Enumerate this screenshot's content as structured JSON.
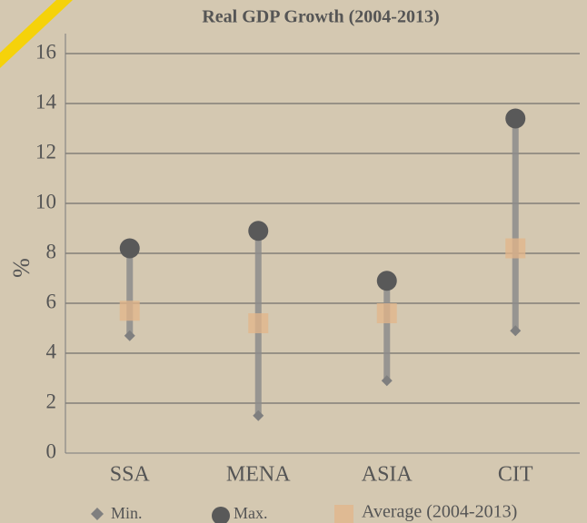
{
  "chart_data": {
    "type": "range",
    "title": "Real GDP Growth (2004-2013)",
    "y_label": "%",
    "categories": [
      "SSA",
      "MENA",
      "ASIA",
      "CIT"
    ],
    "series": [
      {
        "name": "Min.",
        "color": "#7f7f7f",
        "values": [
          4.7,
          1.5,
          2.9,
          4.9
        ]
      },
      {
        "name": "Max.",
        "color": "#595959",
        "values": [
          8.2,
          8.9,
          6.9,
          13.4
        ]
      },
      {
        "name": "Average (2004-2013)",
        "color": "#e3b58a",
        "values": [
          5.7,
          5.2,
          5.6,
          8.2
        ]
      }
    ],
    "range_color": "#8c8c8c",
    "ylim": [
      0,
      16.8
    ],
    "yticks": [
      0,
      2,
      4,
      6,
      8,
      10,
      12,
      14,
      16
    ],
    "grid": true
  }
}
